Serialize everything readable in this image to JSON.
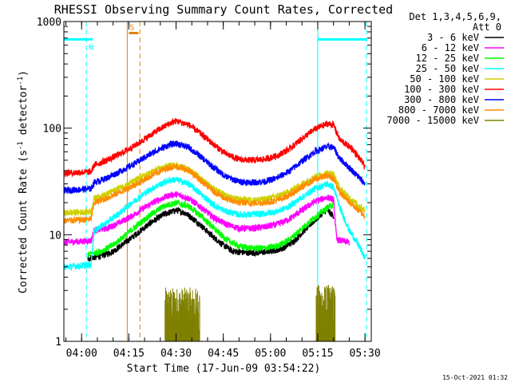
{
  "chart_data": {
    "type": "line",
    "title": "RHESSI Observing Summary Count Rates, Corrected",
    "ylabel_main": "Corrected Count Rate (s",
    "ylabel_sup1": "-1",
    "ylabel_mid": " detector",
    "ylabel_sup2": "-1",
    "ylabel_end": ")",
    "xlabel": "Start Time (17-Jun-09 03:54:22)",
    "footer_date": "15-Oct-2021 01:32",
    "y_scale": "log",
    "ylim": [
      1,
      1000
    ],
    "xlim": [
      "03:54:22",
      "05:32:00"
    ],
    "x_ticks": [
      "04:00",
      "04:15",
      "04:30",
      "04:45",
      "05:00",
      "05:15",
      "05:30"
    ],
    "y_ticks": [
      "1",
      "10",
      "100",
      "1000"
    ],
    "legend_header": [
      "Det 1,3,4,5,6,9,",
      "Att 0"
    ],
    "legend_placement": "top-right",
    "flag_labels": {
      "S": "S",
      "N": "N"
    },
    "markers": [
      {
        "name": "night-start",
        "time": "03:54:22",
        "style": "solid",
        "color": "#00ffff"
      },
      {
        "name": "night-end",
        "time": "04:01:30",
        "style": "dashed",
        "color": "#00ffff"
      },
      {
        "name": "saa-start",
        "time": "04:14:30",
        "style": "solid",
        "color": "#e08000"
      },
      {
        "name": "saa-end",
        "time": "04:18:30",
        "style": "dashed",
        "color": "#e08000"
      },
      {
        "name": "night2-start",
        "time": "05:15:00",
        "style": "solid",
        "color": "#00ffff"
      },
      {
        "name": "night2-end",
        "time": "05:30:30",
        "style": "dashed",
        "color": "#00ffff"
      }
    ],
    "flag_bars": [
      {
        "name": "night",
        "start": "03:54:22",
        "end": "04:03:30",
        "level": 680,
        "color": "#00ffff"
      },
      {
        "name": "saa",
        "start": "04:15:00",
        "end": "04:18:00",
        "level": 780,
        "color": "#e08000"
      },
      {
        "name": "night2",
        "start": "05:15:00",
        "end": "05:30:30",
        "level": 680,
        "color": "#00ffff"
      }
    ],
    "series": [
      {
        "name": "3 - 6 keV",
        "color": "#000000",
        "points": [
          [
            "04:02",
            6
          ],
          [
            "04:06",
            6.3
          ],
          [
            "04:10",
            7
          ],
          [
            "04:14",
            8.5
          ],
          [
            "04:18",
            10.5
          ],
          [
            "04:22",
            13
          ],
          [
            "04:26",
            15.5
          ],
          [
            "04:30",
            17
          ],
          [
            "04:33",
            16
          ],
          [
            "04:37",
            13
          ],
          [
            "04:41",
            10
          ],
          [
            "04:45",
            8
          ],
          [
            "04:48",
            7
          ],
          [
            "04:52",
            6.8
          ],
          [
            "04:56",
            6.8
          ],
          [
            "05:00",
            7
          ],
          [
            "05:04",
            7.5
          ],
          [
            "05:08",
            9
          ],
          [
            "05:12",
            12
          ],
          [
            "05:15",
            14.5
          ],
          [
            "05:17",
            16.5
          ],
          [
            "05:18",
            17
          ],
          [
            "05:19",
            16
          ],
          [
            "05:20",
            15
          ]
        ]
      },
      {
        "name": "6 - 12 keV",
        "color": "#ff00ff",
        "points": [
          [
            "03:54:30",
            8.5
          ],
          [
            "04:03",
            8.8
          ],
          [
            "04:04",
            11
          ],
          [
            "04:08",
            11.5
          ],
          [
            "04:12",
            13
          ],
          [
            "04:16",
            15
          ],
          [
            "04:20",
            18
          ],
          [
            "04:24",
            21
          ],
          [
            "04:28",
            23.5
          ],
          [
            "04:30",
            24
          ],
          [
            "04:34",
            22
          ],
          [
            "04:38",
            18
          ],
          [
            "04:42",
            14.5
          ],
          [
            "04:46",
            12.5
          ],
          [
            "04:50",
            11.5
          ],
          [
            "04:54",
            11.5
          ],
          [
            "04:58",
            11.8
          ],
          [
            "05:02",
            12.5
          ],
          [
            "05:06",
            14
          ],
          [
            "05:10",
            17
          ],
          [
            "05:14",
            20.5
          ],
          [
            "05:18",
            22.5
          ],
          [
            "05:20",
            21.5
          ],
          [
            "05:21",
            9
          ],
          [
            "05:25",
            8.5
          ]
        ]
      },
      {
        "name": "12 - 25 keV",
        "color": "#00ff00",
        "points": [
          [
            "04:02",
            6.5
          ],
          [
            "04:06",
            7
          ],
          [
            "04:10",
            8
          ],
          [
            "04:14",
            10
          ],
          [
            "04:18",
            12.5
          ],
          [
            "04:22",
            15.5
          ],
          [
            "04:26",
            18.5
          ],
          [
            "04:30",
            20
          ],
          [
            "04:34",
            18.5
          ],
          [
            "04:38",
            15
          ],
          [
            "04:42",
            11.5
          ],
          [
            "04:46",
            9
          ],
          [
            "04:50",
            7.8
          ],
          [
            "04:54",
            7.5
          ],
          [
            "04:58",
            7.5
          ],
          [
            "05:02",
            7.8
          ],
          [
            "05:06",
            9
          ],
          [
            "05:10",
            11.5
          ],
          [
            "05:14",
            14.5
          ],
          [
            "05:18",
            18
          ],
          [
            "05:20",
            19
          ]
        ]
      },
      {
        "name": "25 - 50 keV",
        "color": "#00ffff",
        "points": [
          [
            "03:54:30",
            5
          ],
          [
            "04:03",
            5.2
          ],
          [
            "04:04",
            11
          ],
          [
            "04:08",
            13
          ],
          [
            "04:12",
            16
          ],
          [
            "04:16",
            20
          ],
          [
            "04:20",
            24.5
          ],
          [
            "04:24",
            29
          ],
          [
            "04:28",
            32.5
          ],
          [
            "04:30",
            33
          ],
          [
            "04:34",
            30
          ],
          [
            "04:38",
            24
          ],
          [
            "04:42",
            19
          ],
          [
            "04:46",
            16.5
          ],
          [
            "04:50",
            15.5
          ],
          [
            "04:54",
            15.5
          ],
          [
            "04:58",
            15.8
          ],
          [
            "05:02",
            16.5
          ],
          [
            "05:06",
            18.5
          ],
          [
            "05:10",
            22.5
          ],
          [
            "05:14",
            27
          ],
          [
            "05:18",
            30
          ],
          [
            "05:20",
            28
          ],
          [
            "05:22",
            18
          ],
          [
            "05:25",
            11
          ],
          [
            "05:28",
            8
          ],
          [
            "05:30",
            6
          ]
        ]
      },
      {
        "name": "50 - 100 keV",
        "color": "#d0d000",
        "points": [
          [
            "03:54:30",
            16
          ],
          [
            "04:03",
            16.5
          ],
          [
            "04:04",
            22
          ],
          [
            "04:08",
            24
          ],
          [
            "04:12",
            27.5
          ],
          [
            "04:16",
            31
          ],
          [
            "04:20",
            36
          ],
          [
            "04:24",
            41
          ],
          [
            "04:28",
            44.5
          ],
          [
            "04:30",
            45
          ],
          [
            "04:34",
            41
          ],
          [
            "04:38",
            33.5
          ],
          [
            "04:42",
            27
          ],
          [
            "04:46",
            23
          ],
          [
            "04:50",
            21.5
          ],
          [
            "04:54",
            21.2
          ],
          [
            "04:58",
            21.5
          ],
          [
            "05:02",
            23
          ],
          [
            "05:06",
            25.5
          ],
          [
            "05:10",
            30
          ],
          [
            "05:14",
            35
          ],
          [
            "05:18",
            38
          ],
          [
            "05:20",
            37
          ],
          [
            "05:22",
            27
          ],
          [
            "05:26",
            21
          ],
          [
            "05:30",
            17
          ]
        ]
      },
      {
        "name": "100 - 300 keV",
        "color": "#ff0000",
        "points": [
          [
            "03:54:30",
            38
          ],
          [
            "04:03",
            39
          ],
          [
            "04:04",
            45
          ],
          [
            "04:08",
            50
          ],
          [
            "04:12",
            57
          ],
          [
            "04:16",
            66
          ],
          [
            "04:20",
            79
          ],
          [
            "04:24",
            95
          ],
          [
            "04:28",
            111
          ],
          [
            "04:30",
            117
          ],
          [
            "04:34",
            108
          ],
          [
            "04:38",
            88
          ],
          [
            "04:42",
            70
          ],
          [
            "04:46",
            57
          ],
          [
            "04:50",
            51
          ],
          [
            "04:54",
            50
          ],
          [
            "04:58",
            51
          ],
          [
            "05:02",
            55
          ],
          [
            "05:06",
            64
          ],
          [
            "05:10",
            80
          ],
          [
            "05:14",
            98
          ],
          [
            "05:18",
            110
          ],
          [
            "05:20",
            108
          ],
          [
            "05:22",
            78
          ],
          [
            "05:26",
            64
          ],
          [
            "05:30",
            44
          ]
        ]
      },
      {
        "name": "300 - 800 keV",
        "color": "#0000ff",
        "points": [
          [
            "03:54:30",
            26
          ],
          [
            "04:03",
            27
          ],
          [
            "04:04",
            31
          ],
          [
            "04:08",
            34
          ],
          [
            "04:12",
            39
          ],
          [
            "04:16",
            45
          ],
          [
            "04:20",
            53
          ],
          [
            "04:24",
            62
          ],
          [
            "04:28",
            70
          ],
          [
            "04:30",
            72
          ],
          [
            "04:34",
            66
          ],
          [
            "04:38",
            53.5
          ],
          [
            "04:42",
            42.5
          ],
          [
            "04:46",
            35
          ],
          [
            "04:50",
            31.5
          ],
          [
            "04:54",
            31
          ],
          [
            "04:58",
            31.5
          ],
          [
            "05:02",
            34
          ],
          [
            "05:06",
            39.5
          ],
          [
            "05:10",
            49
          ],
          [
            "05:14",
            60
          ],
          [
            "05:18",
            67
          ],
          [
            "05:20",
            66
          ],
          [
            "05:22",
            52
          ],
          [
            "05:26",
            40
          ],
          [
            "05:30",
            30
          ]
        ]
      },
      {
        "name": "800 - 7000 keV",
        "color": "#ff8c00",
        "points": [
          [
            "03:54:30",
            13.5
          ],
          [
            "04:03",
            14
          ],
          [
            "04:04",
            20
          ],
          [
            "04:08",
            22
          ],
          [
            "04:12",
            25
          ],
          [
            "04:16",
            28.5
          ],
          [
            "04:20",
            33
          ],
          [
            "04:24",
            38.5
          ],
          [
            "04:28",
            43
          ],
          [
            "04:30",
            44
          ],
          [
            "04:34",
            40
          ],
          [
            "04:38",
            32
          ],
          [
            "04:42",
            25.5
          ],
          [
            "04:46",
            21.5
          ],
          [
            "04:50",
            20
          ],
          [
            "04:54",
            19.8
          ],
          [
            "04:58",
            20
          ],
          [
            "05:02",
            21
          ],
          [
            "05:06",
            23.5
          ],
          [
            "05:10",
            28
          ],
          [
            "05:14",
            33
          ],
          [
            "05:18",
            36
          ],
          [
            "05:20",
            34
          ],
          [
            "05:22",
            25
          ],
          [
            "05:26",
            19
          ],
          [
            "05:30",
            15
          ]
        ]
      },
      {
        "name": "7000 - 15000 keV",
        "color": "#808000",
        "points": []
      }
    ],
    "bursts_7000_15000": [
      {
        "start": "04:26:30",
        "end": "04:37:30",
        "low": 1,
        "high": 3.2
      },
      {
        "start": "05:14:30",
        "end": "05:20:30",
        "low": 1,
        "high": 3.4
      }
    ]
  }
}
